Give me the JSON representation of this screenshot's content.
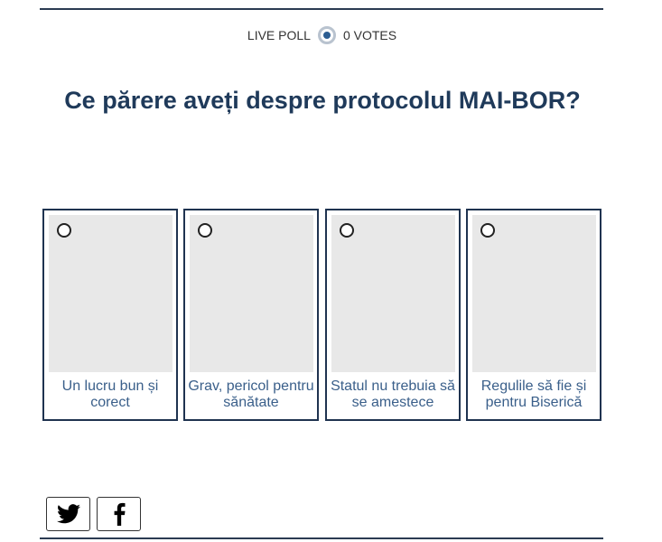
{
  "poll": {
    "live_label": "LIVE POLL",
    "votes_label": "0 VOTES",
    "question": "Ce părere aveți despre protocolul MAI-BOR?",
    "options": [
      {
        "label": "Un lucru bun și corect"
      },
      {
        "label": "Grav, pericol pentru sănătate"
      },
      {
        "label": "Statul nu trebuia să se amestece"
      },
      {
        "label": "Regulile să fie și pentru Biserică"
      }
    ]
  },
  "share": {
    "icons": [
      "twitter-icon",
      "facebook-icon"
    ]
  },
  "colors": {
    "title": "#1f3a5a",
    "option_text": "#3a5f8a",
    "border": "#1f3350"
  }
}
